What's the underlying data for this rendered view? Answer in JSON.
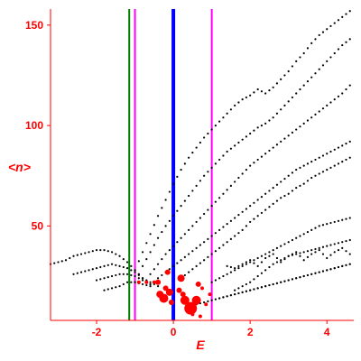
{
  "chart_data": {
    "type": "scatter",
    "title": "",
    "xlabel": "E",
    "ylabel": "<n>",
    "xlim": [
      -3.2,
      4.7
    ],
    "ylim": [
      3,
      158
    ],
    "xticks": [
      -2,
      0,
      2,
      4
    ],
    "yticks": [
      50,
      100,
      150
    ],
    "x_tick_labels": [
      "-2",
      "0",
      "2",
      "4"
    ],
    "y_tick_labels": [
      "50",
      "100",
      "150"
    ],
    "grid": false,
    "legend": "none",
    "colors": {
      "axis": "#ff0000",
      "points": "#000000",
      "highlight": "#ff0000",
      "line_blue": "#0000ff",
      "line_green": "#008000",
      "line_magenta": "#ff00ff"
    },
    "vertical_lines": [
      {
        "x": -1.15,
        "color": "#008000",
        "width": 2
      },
      {
        "x": -1.0,
        "color": "#ff00ff",
        "width": 2
      },
      {
        "x": 0.0,
        "color": "#0000ff",
        "width": 4
      },
      {
        "x": 1.0,
        "color": "#ff00ff",
        "width": 2
      }
    ],
    "curves": [
      {
        "x": [
          -3.2,
          -3.0,
          -2.8,
          -2.6,
          -2.4,
          -2.2,
          -2.0,
          -1.8,
          -1.6,
          -1.4,
          -1.2,
          -1.0,
          -0.8,
          -0.6
        ],
        "y": [
          31,
          32,
          33,
          35,
          36,
          37,
          38,
          38,
          37,
          35,
          32,
          28,
          24,
          21
        ]
      },
      {
        "x": [
          -2.6,
          -2.4,
          -2.2,
          -2.0,
          -1.8,
          -1.6,
          -1.4,
          -1.2,
          -1.0,
          -0.8,
          -0.6,
          -0.4
        ],
        "y": [
          26,
          27,
          28,
          29,
          30,
          31,
          30,
          29,
          27,
          24,
          22,
          20
        ]
      },
      {
        "x": [
          -2.0,
          -1.8,
          -1.6,
          -1.4,
          -1.2,
          -1.0,
          -0.8,
          -0.6
        ],
        "y": [
          23,
          24,
          25,
          26,
          26,
          25,
          23,
          21
        ]
      },
      {
        "x": [
          -1.8,
          -1.6,
          -1.4,
          -1.2,
          -1.0,
          -0.8,
          -0.6
        ],
        "y": [
          18,
          19,
          20,
          22,
          22,
          21,
          20
        ]
      },
      {
        "x": [
          -1.0,
          -0.8,
          -0.6,
          -0.4,
          -0.2,
          0.0,
          0.2,
          0.4,
          0.6,
          0.8,
          1.0,
          1.2,
          1.4,
          1.6,
          1.8,
          2.0,
          2.2,
          2.4,
          2.6,
          2.8,
          3.0,
          3.2,
          3.4,
          3.6,
          3.8,
          4.0,
          4.2,
          4.4,
          4.6
        ],
        "y": [
          28,
          37,
          46,
          55,
          63,
          71,
          78,
          84,
          89,
          94,
          98,
          102,
          106,
          110,
          113,
          115,
          118,
          116,
          119,
          123,
          127,
          132,
          136,
          141,
          145,
          148,
          151,
          154,
          157
        ]
      },
      {
        "x": [
          -1.0,
          -0.8,
          -0.6,
          -0.4,
          -0.2,
          0.0,
          0.2,
          0.4,
          0.6,
          0.8,
          1.0,
          1.2,
          1.4,
          1.6,
          1.8,
          2.0,
          2.2,
          2.4,
          2.6,
          2.8,
          3.0,
          3.2,
          3.4,
          3.6,
          3.8,
          4.0,
          4.2,
          4.4,
          4.6
        ],
        "y": [
          22,
          30,
          37,
          44,
          50,
          55,
          60,
          65,
          70,
          75,
          79,
          83,
          87,
          90,
          93,
          96,
          99,
          101,
          104,
          108,
          112,
          116,
          120,
          124,
          128,
          132,
          136,
          140,
          143
        ]
      },
      {
        "x": [
          -0.6,
          -0.4,
          -0.2,
          0.0,
          0.2,
          0.4,
          0.6,
          0.8,
          1.0,
          1.2,
          1.4,
          1.6,
          1.8,
          2.0,
          2.2,
          2.4,
          2.6,
          2.8,
          3.0,
          3.2,
          3.4,
          3.6,
          3.8,
          4.0,
          4.2,
          4.4,
          4.6
        ],
        "y": [
          26,
          31,
          36,
          40,
          44,
          48,
          52,
          56,
          60,
          64,
          68,
          72,
          76,
          80,
          83,
          86,
          89,
          92,
          95,
          98,
          101,
          104,
          107,
          110,
          113,
          116,
          120
        ]
      },
      {
        "x": [
          -0.4,
          -0.2,
          0.0,
          0.2,
          0.4,
          0.6,
          0.8,
          1.0,
          1.2,
          1.4,
          1.6,
          1.8,
          2.0,
          2.2,
          2.4,
          2.6,
          2.8,
          3.0,
          3.2,
          3.4,
          3.6,
          3.8,
          4.0,
          4.2,
          4.4,
          4.6
        ],
        "y": [
          24,
          27,
          30,
          33,
          36,
          39,
          42,
          45,
          48,
          51,
          54,
          57,
          60,
          63,
          66,
          69,
          72,
          75,
          78,
          80,
          82,
          84,
          86,
          88,
          90,
          92
        ]
      },
      {
        "x": [
          0.2,
          0.4,
          0.6,
          0.8,
          1.0,
          1.2,
          1.4,
          1.6,
          1.8,
          2.0,
          2.2,
          2.4,
          2.6,
          2.8,
          3.0,
          3.2,
          3.4,
          3.6,
          3.8,
          4.0,
          4.2,
          4.4,
          4.6
        ],
        "y": [
          24,
          27,
          30,
          33,
          36,
          39,
          42,
          45,
          48,
          52,
          55,
          58,
          61,
          64,
          66,
          69,
          71,
          74,
          76,
          78,
          80,
          82,
          84
        ]
      },
      {
        "x": [
          1.0,
          1.2,
          1.4,
          1.6,
          1.8,
          2.0,
          2.2,
          2.4,
          2.6,
          2.8,
          3.0,
          3.2,
          3.4,
          3.6,
          3.8,
          4.0,
          4.2,
          4.4,
          4.6
        ],
        "y": [
          22,
          24,
          26,
          28,
          30,
          32,
          34,
          36,
          38,
          40,
          42,
          44,
          46,
          48,
          50,
          51,
          52,
          53,
          54
        ]
      },
      {
        "x": [
          1.6,
          1.8,
          2.0,
          2.2,
          2.4,
          2.6,
          2.8,
          3.0,
          3.2,
          3.4,
          3.6,
          3.8,
          4.0,
          4.2,
          4.4,
          4.6
        ],
        "y": [
          18,
          20,
          22,
          25,
          28,
          31,
          33,
          35,
          36,
          37,
          38,
          39,
          40,
          41,
          42,
          43
        ]
      },
      {
        "x": [
          1.2,
          1.4,
          1.6,
          1.8,
          2.0,
          2.2,
          2.4,
          2.6,
          2.8,
          3.0,
          3.2,
          3.4,
          3.6,
          3.8,
          4.0,
          4.2,
          4.4,
          4.6
        ],
        "y": [
          14,
          15,
          16,
          17,
          18,
          19,
          20,
          21,
          22,
          23,
          24,
          25,
          26,
          27,
          28,
          29,
          30,
          31
        ]
      },
      {
        "x": [
          0.4,
          0.6,
          0.8,
          1.0,
          1.2,
          1.4,
          1.6,
          1.8,
          2.0,
          2.2,
          2.4,
          2.6,
          2.8,
          3.0,
          3.2,
          3.4,
          3.6,
          3.8,
          4.0,
          4.2,
          4.4,
          4.6
        ],
        "y": [
          10,
          11,
          12,
          13,
          14,
          15,
          16,
          17,
          18,
          19,
          20,
          21,
          22,
          23,
          24,
          25,
          26,
          27,
          28,
          29,
          30,
          31
        ]
      },
      {
        "x": [
          1.4,
          1.6,
          1.8,
          2.0,
          2.2,
          2.4,
          2.6,
          2.8,
          3.0,
          3.2,
          3.4,
          3.6,
          3.8,
          4.0,
          4.2,
          4.4,
          4.6
        ],
        "y": [
          30,
          29,
          31,
          33,
          30,
          34,
          36,
          32,
          35,
          37,
          33,
          36,
          38,
          34,
          37,
          39,
          36
        ]
      }
    ],
    "highlight_points": [
      {
        "x": -0.9,
        "y": 22,
        "r": 2
      },
      {
        "x": -0.7,
        "y": 22,
        "r": 2
      },
      {
        "x": -0.5,
        "y": 22,
        "r": 2
      },
      {
        "x": -0.4,
        "y": 22,
        "r": 3
      },
      {
        "x": -0.2,
        "y": 19,
        "r": 3
      },
      {
        "x": -0.35,
        "y": 16,
        "r": 4
      },
      {
        "x": -0.25,
        "y": 14,
        "r": 5
      },
      {
        "x": -0.1,
        "y": 17,
        "r": 4
      },
      {
        "x": 0.15,
        "y": 18,
        "r": 3
      },
      {
        "x": 0.3,
        "y": 13,
        "r": 5
      },
      {
        "x": 0.45,
        "y": 9,
        "r": 7
      },
      {
        "x": 0.6,
        "y": 13,
        "r": 5
      },
      {
        "x": 0.75,
        "y": 19,
        "r": 2
      },
      {
        "x": 0.2,
        "y": 24,
        "r": 4
      },
      {
        "x": -0.15,
        "y": 27,
        "r": 3
      },
      {
        "x": 0.5,
        "y": 6,
        "r": 2
      },
      {
        "x": 0.25,
        "y": 16,
        "r": 3
      },
      {
        "x": -0.05,
        "y": 12,
        "r": 3
      },
      {
        "x": 0.65,
        "y": 21,
        "r": 3
      },
      {
        "x": 0.85,
        "y": 11,
        "r": 2
      },
      {
        "x": 0.7,
        "y": 5,
        "r": 2
      },
      {
        "x": 0.95,
        "y": 16,
        "r": 2
      }
    ]
  }
}
